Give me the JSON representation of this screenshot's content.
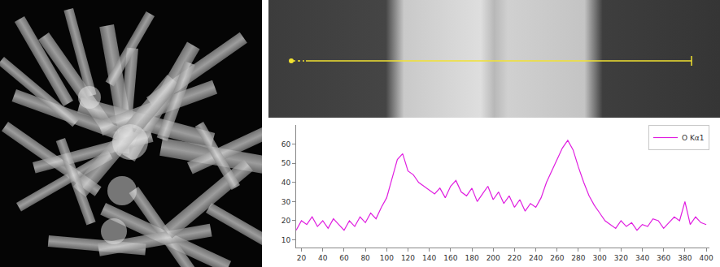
{
  "chart_data": {
    "type": "line",
    "x": [
      15,
      20,
      25,
      30,
      35,
      40,
      45,
      50,
      55,
      60,
      65,
      70,
      75,
      80,
      85,
      90,
      95,
      100,
      105,
      110,
      115,
      120,
      125,
      130,
      135,
      140,
      145,
      150,
      155,
      160,
      165,
      170,
      175,
      180,
      185,
      190,
      195,
      200,
      205,
      210,
      215,
      220,
      225,
      230,
      235,
      240,
      245,
      250,
      255,
      260,
      265,
      270,
      275,
      280,
      285,
      290,
      295,
      300,
      305,
      310,
      315,
      320,
      325,
      330,
      335,
      340,
      345,
      350,
      355,
      360,
      365,
      370,
      375,
      380,
      385,
      390,
      395,
      400
    ],
    "series": [
      {
        "name": "O Kα1",
        "color": "#e01ee0",
        "values": [
          15,
          20,
          18,
          22,
          17,
          20,
          16,
          21,
          18,
          15,
          20,
          17,
          22,
          19,
          24,
          21,
          27,
          32,
          42,
          52,
          55,
          46,
          44,
          40,
          38,
          36,
          34,
          37,
          32,
          38,
          41,
          35,
          33,
          37,
          30,
          34,
          38,
          31,
          35,
          29,
          33,
          27,
          31,
          25,
          29,
          27,
          32,
          40,
          46,
          52,
          58,
          62,
          57,
          48,
          40,
          33,
          28,
          24,
          20,
          18,
          16,
          20,
          17,
          19,
          15,
          18,
          17,
          21,
          20,
          16,
          19,
          22,
          20,
          30,
          18,
          22,
          19,
          18
        ]
      }
    ],
    "xlim": [
      15,
      403
    ],
    "xticks": [
      20,
      40,
      60,
      80,
      100,
      120,
      140,
      160,
      180,
      200,
      220,
      240,
      260,
      280,
      300,
      320,
      340,
      360,
      380,
      400
    ],
    "ylim": [
      6,
      70
    ],
    "yticks": [
      10,
      20,
      30,
      40,
      50,
      60
    ],
    "grid": false,
    "legend": "top right"
  }
}
